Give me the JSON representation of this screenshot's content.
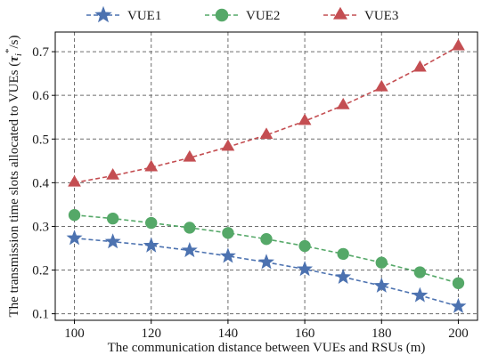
{
  "chart_data": {
    "type": "line",
    "title": "",
    "xlabel": "The communication distance between VUEs and RSUs (m)",
    "ylabel": {
      "prefix": "The transmission time slots allocated to VUEs (",
      "tau": "τ",
      "sub": "i",
      "sup": "*",
      "suffix": "/s)"
    },
    "x": [
      100,
      110,
      120,
      130,
      140,
      150,
      160,
      170,
      180,
      190,
      200
    ],
    "xlim": [
      95,
      205
    ],
    "ylim": [
      0.085,
      0.745
    ],
    "xticks": [
      100,
      120,
      140,
      160,
      180,
      200
    ],
    "yticks": [
      0.1,
      0.2,
      0.3,
      0.4,
      0.5,
      0.6,
      0.7
    ],
    "grid": true,
    "legend_position": "top-outside",
    "series": [
      {
        "name": "VUE1",
        "color": "#4c72b0",
        "marker": "star",
        "values": [
          0.273,
          0.265,
          0.256,
          0.245,
          0.232,
          0.218,
          0.202,
          0.184,
          0.164,
          0.142,
          0.117
        ]
      },
      {
        "name": "VUE2",
        "color": "#55a868",
        "marker": "circle",
        "values": [
          0.326,
          0.318,
          0.308,
          0.297,
          0.285,
          0.271,
          0.255,
          0.237,
          0.217,
          0.195,
          0.17
        ]
      },
      {
        "name": "VUE3",
        "color": "#c44e52",
        "marker": "triangle",
        "values": [
          0.4,
          0.416,
          0.435,
          0.457,
          0.482,
          0.509,
          0.541,
          0.577,
          0.618,
          0.663,
          0.712
        ]
      }
    ]
  }
}
